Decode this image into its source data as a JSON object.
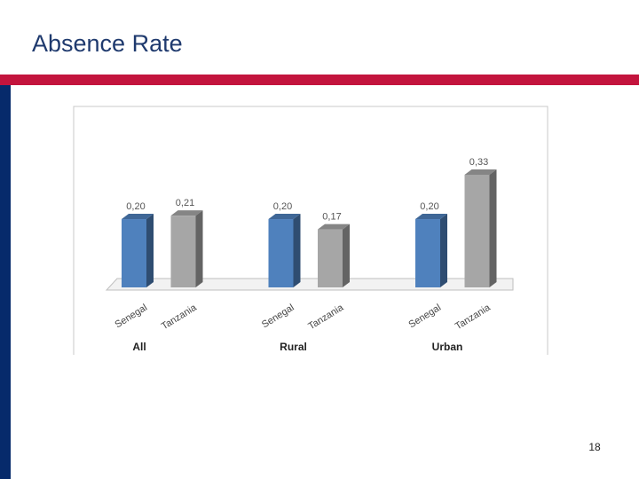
{
  "slide": {
    "title": "Absence Rate",
    "page_number": 18
  },
  "chart_data": {
    "type": "bar",
    "categories": [
      "All",
      "Rural",
      "Urban"
    ],
    "series": [
      {
        "name": "Senegal",
        "color": "#4f81bd",
        "values": [
          0.2,
          0.2,
          0.2
        ],
        "value_labels": [
          "0,20",
          "0,20",
          "0,20"
        ]
      },
      {
        "name": "Tanzania",
        "color": "#a6a6a6",
        "values": [
          0.21,
          0.17,
          0.33
        ],
        "value_labels": [
          "0,21",
          "0,17",
          "0,33"
        ]
      }
    ]
  }
}
